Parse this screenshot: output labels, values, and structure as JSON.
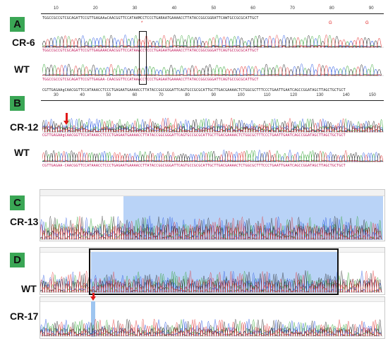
{
  "panels": [
    {
      "letter": "A",
      "rows": [
        {
          "label": "CR-6"
        },
        {
          "label": "WT"
        }
      ],
      "ruler_ticks": [
        "10",
        "20",
        "30",
        "40",
        "50",
        "60",
        "70",
        "80",
        "90"
      ],
      "ref_seq": "TGGCCGCCGTCGCAGATTCCGTTGAGAAaCAACGGTTCCATAAMCCTCCCTGARAATGAAAACCTTATACCGGCGGRATTCAWTGCCGCGCATTGCT",
      "trace_seq1": "TGGCCGCCGTCGCAGATTCCGTTGAGAAACAACGGTTCCATAAACCTCCCTGAGAATGAAAACCTTATACCGGCGGGATTCAGTGCCGCGCATTGCT",
      "trace_seq2": "TGGCCGCCGTCGCAGATTCCGTTGAGAA-CAACGGTTCCATAAACCTCCCTGAGAATGAAAACCTTATACCGGCGGGATTCAGTGCCGCGCATTGCT",
      "marks": [
        "*",
        "G",
        "G"
      ]
    },
    {
      "letter": "B",
      "rows": [
        {
          "label": "CR-12"
        },
        {
          "label": "WT"
        }
      ],
      "ruler_ticks": [
        "30",
        "40",
        "50",
        "60",
        "70",
        "80",
        "90",
        "100",
        "110",
        "120",
        "130",
        "140",
        "150"
      ],
      "ref_seq": "CGTTGAGAAgCAACGGTTCCATAAACCTCCCTGAGAATGAAAACCTTATACCGGCGGGATTCAGTGCCGCGCATTGCTTGACGAAAACTCTGGCGCTTTCCCTGAATTGAATCAGCCGGATAGCTTAGCTGCTGCT",
      "trace_seq1": "CGTTGAGAAgCAACGGTTCCATAAACCTCCCTGAGAATGAAAACCTTATACCGGCGGGATTCAGTGCCGCGCATTGCTTGACGAAAACTCTGGCGCTTTCCCTGAATTGAATCAGCCGGATAGCTTAGCTGCTGCT",
      "trace_seq2": "CGTTGAGAA-CAACGGTTCCATAAACCTCCCTGAGAATGAAAACCTTATACCGGCGGGATTCAGTGCCGCGCATTGCTTGACGAAAACTCTGGCGCTTTCCCTGAATTGAATCAGCCGGATAGCTTAGCTGCTGCT"
    },
    {
      "letter": "C",
      "rows": [
        {
          "label": "CR-13"
        }
      ]
    },
    {
      "letter": "D",
      "rows": [
        {
          "label": "WT"
        },
        {
          "label": "CR-17"
        }
      ]
    }
  ],
  "colors": {
    "badge": "#3aa655",
    "A": "#2ca02c",
    "C": "#1f4fe0",
    "G": "#222222",
    "T": "#e03030",
    "highlight": "#b9d3f7",
    "arrow": "#e01818"
  }
}
